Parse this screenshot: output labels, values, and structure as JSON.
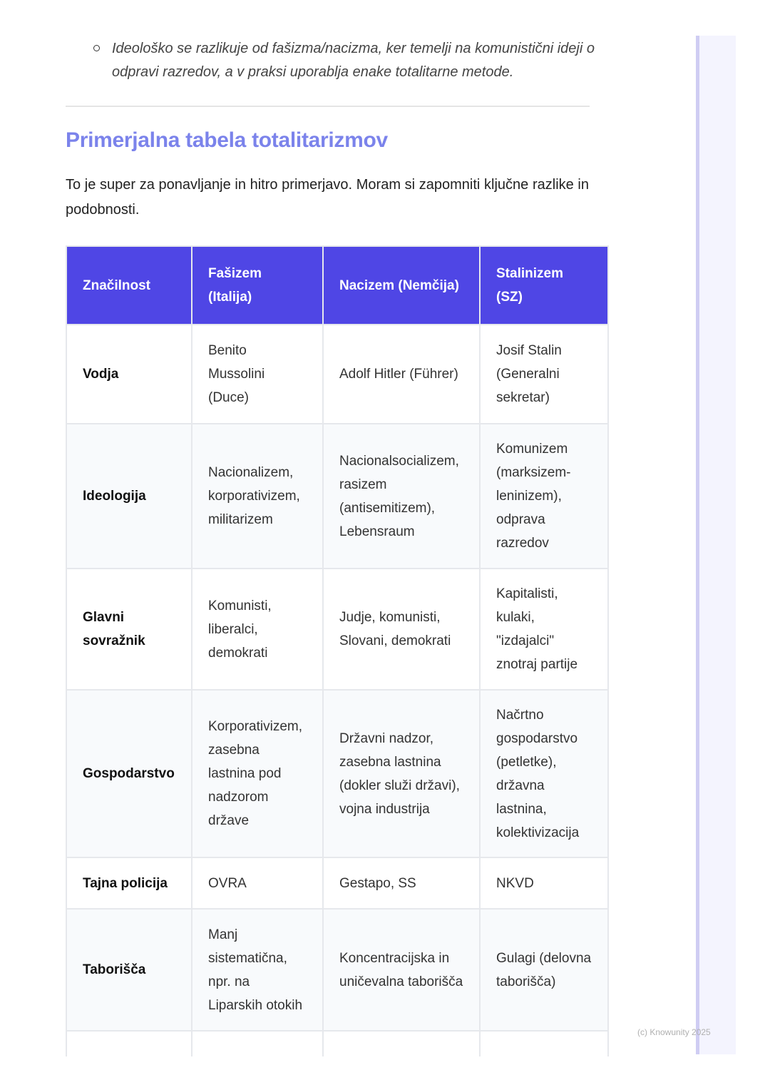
{
  "bullet": "Ideološko se razlikuje od fašizma/nacizma, ker temelji na komunistični ideji o odpravi razredov, a v praksi uporablja enake totalitarne metode.",
  "heading": "Primerjalna tabela totalitarizmov",
  "intro": "To je super za ponavljanje in hitro primerjavo. Moram si zapomniti ključne razlike in podobnosti.",
  "table": {
    "headers": [
      "Značilnost",
      "Fašizem (Italija)",
      "Nacizem (Nemčija)",
      "Stalinizem (SZ)"
    ],
    "rows": [
      [
        "Vodja",
        "Benito Mussolini (Duce)",
        "Adolf Hitler (Führer)",
        "Josif Stalin (Generalni sekretar)"
      ],
      [
        "Ideologija",
        "Nacionalizem, korporativizem, militarizem",
        "Nacionalsocializem, rasizem (antisemitizem), Lebensraum",
        "Komunizem (marksizem-leninizem), odprava razredov"
      ],
      [
        "Glavni sovražnik",
        "Komunisti, liberalci, demokrati",
        "Judje, komunisti, Slovani, demokrati",
        "Kapitalisti, kulaki, \"izdajalci\" znotraj partije"
      ],
      [
        "Gospodarstvo",
        "Korporativizem, zasebna lastnina pod nadzorom države",
        "Državni nadzor, zasebna lastnina (dokler služi državi), vojna industrija",
        "Načrtno gospodarstvo (petletke), državna lastnina, kolektivizacija"
      ],
      [
        "Tajna policija",
        "OVRA",
        "Gestapo, SS",
        "NKVD"
      ],
      [
        "Taborišča",
        "Manj sistematična, npr. na Liparskih otokih",
        "Koncentracijska in uničevalna taborišča",
        "Gulagi (delovna taborišča)"
      ]
    ]
  },
  "watermark": "(c) Knowunity 2025",
  "colors": {
    "header_bg": "#4f46e5",
    "heading": "#7b83eb",
    "sidebar": "#f4f4fe"
  }
}
